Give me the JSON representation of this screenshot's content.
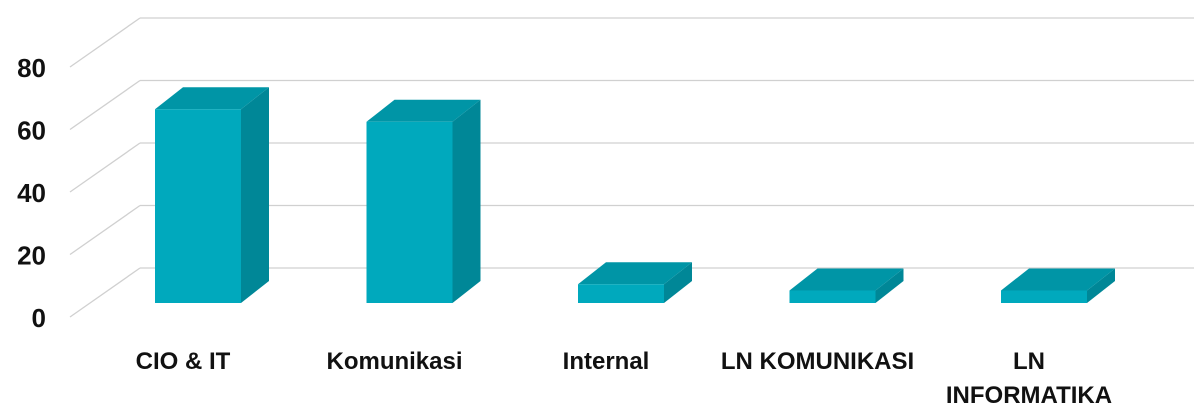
{
  "chart_data": {
    "type": "bar3d",
    "categories": [
      "CIO & IT",
      "Komunikasi",
      "Internal",
      "LN KOMUNIKASI",
      "LN INFORMATIKA"
    ],
    "values": [
      62,
      58,
      6,
      4,
      4
    ],
    "color": "#00a9bd",
    "ylim": [
      0,
      80
    ],
    "yticks": [
      0,
      20,
      40,
      60,
      80
    ],
    "grid": true
  }
}
